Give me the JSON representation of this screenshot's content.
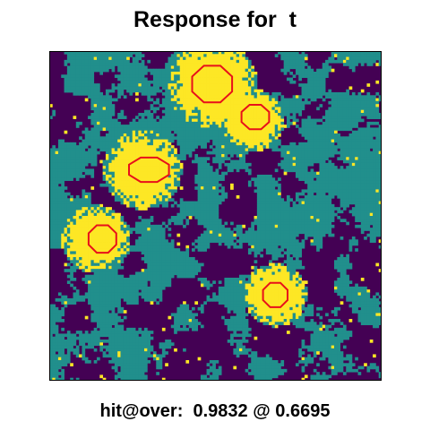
{
  "title": "Response for  t",
  "caption": "hit@over:  0.9832 @ 0.6695",
  "chart_data": {
    "type": "heatmap",
    "title": "Response for  t",
    "caption": "hit@over:  0.9832 @ 0.6695",
    "grid": 112,
    "palette": {
      "level_0": "#440154",
      "level_1": "#218f8c",
      "level_2": "#fde725",
      "contour": "#e8101a"
    },
    "hotspots": [
      {
        "cx": 0.49,
        "cy": 0.1,
        "r": 0.085
      },
      {
        "cx": 0.61,
        "cy": 0.21,
        "r": 0.06
      },
      {
        "cx": 0.28,
        "cy": 0.36,
        "r": 0.075
      },
      {
        "cx": 0.14,
        "cy": 0.57,
        "r": 0.065
      },
      {
        "cx": 0.68,
        "cy": 0.74,
        "r": 0.06
      }
    ],
    "contours": [
      {
        "cx": 0.49,
        "cy": 0.1,
        "rx": 0.065,
        "ry": 0.06
      },
      {
        "cx": 0.62,
        "cy": 0.2,
        "rx": 0.045,
        "ry": 0.04
      },
      {
        "cx": 0.3,
        "cy": 0.36,
        "rx": 0.065,
        "ry": 0.04
      },
      {
        "cx": 0.16,
        "cy": 0.57,
        "rx": 0.045,
        "ry": 0.045
      },
      {
        "cx": 0.68,
        "cy": 0.74,
        "rx": 0.04,
        "ry": 0.04
      }
    ]
  }
}
